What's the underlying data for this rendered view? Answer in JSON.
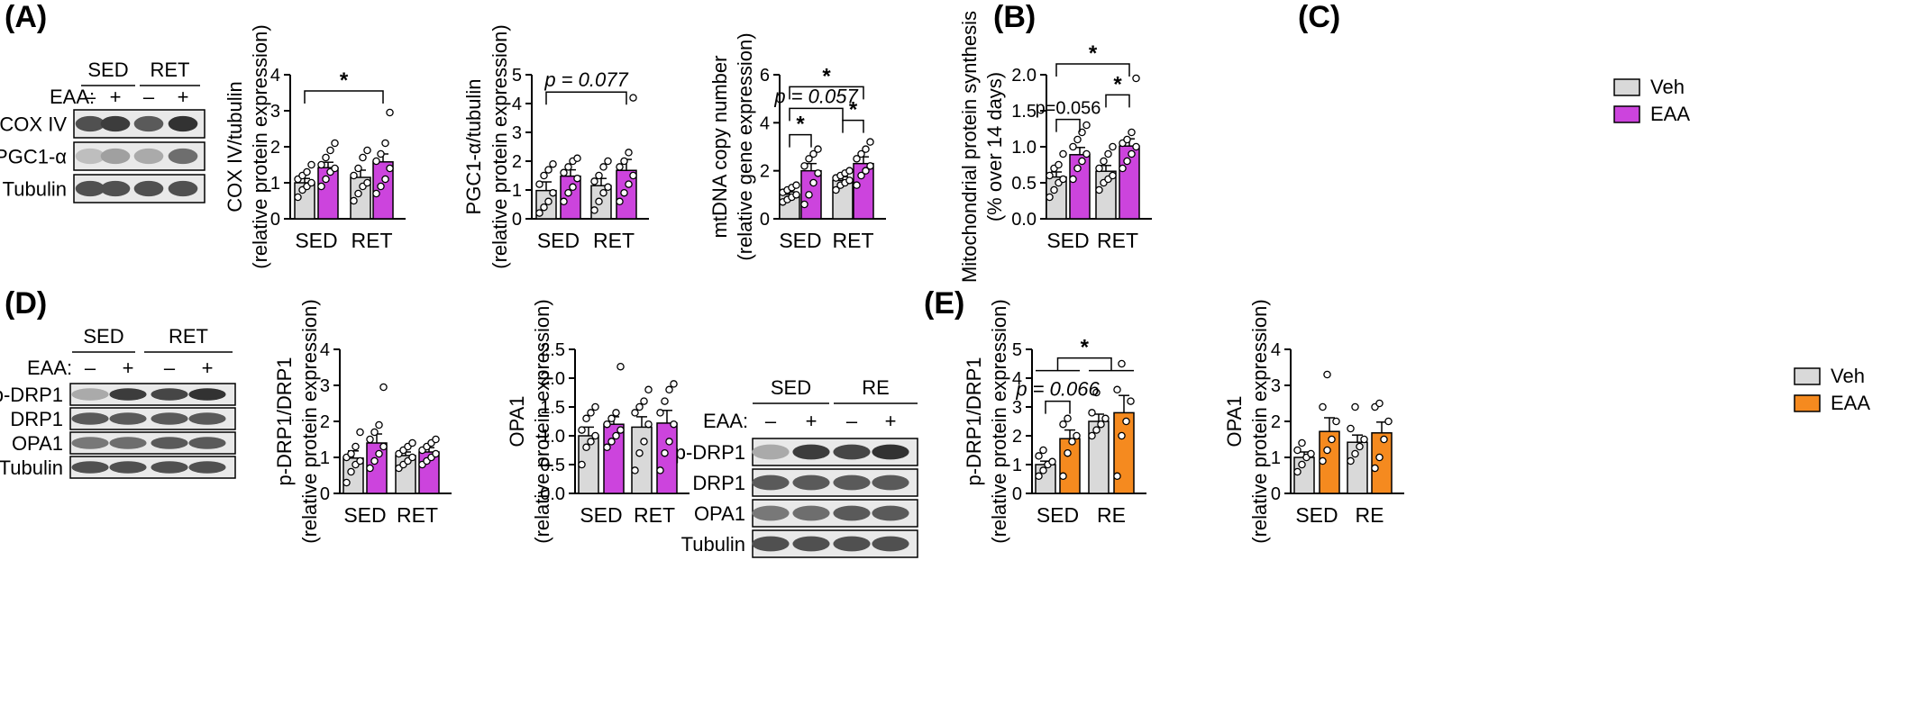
{
  "panels": {
    "A": "(A)",
    "B": "(B)",
    "C": "(C)",
    "D": "(D)",
    "E": "(E)"
  },
  "legend_top": [
    {
      "name": "Veh",
      "color": "#d9d9d9"
    },
    {
      "name": "EAA",
      "color": "#cc44dd"
    }
  ],
  "legend_bottom": [
    {
      "name": "Veh",
      "color": "#d9d9d9"
    },
    {
      "name": "EAA",
      "color": "#f58a1f"
    }
  ],
  "blots": [
    {
      "id": "blotA",
      "groups": [
        "SED",
        "RET"
      ],
      "row_label": "EAA:",
      "signs": [
        "–",
        "+",
        "–",
        "+"
      ],
      "bands": [
        "COX IV",
        "PGC1-α",
        "Tubulin"
      ]
    },
    {
      "id": "blotD",
      "groups": [
        "SED",
        "RET"
      ],
      "row_label": "EAA:",
      "signs": [
        "–",
        "+",
        "–",
        "+"
      ],
      "bands": [
        "p-DRP1",
        "DRP1",
        "OPA1",
        "Tubulin"
      ]
    },
    {
      "id": "blotE",
      "groups": [
        "SED",
        "RE"
      ],
      "row_label": "EAA:",
      "signs": [
        "–",
        "+",
        "–",
        "+"
      ],
      "bands": [
        "p-DRP1",
        "DRP1",
        "OPA1",
        "Tubulin"
      ]
    }
  ],
  "chart_data": [
    {
      "id": "cox4",
      "type": "bar",
      "ylabel": [
        "COX IV/tubulin",
        "(relative protein expression)"
      ],
      "categories": [
        "SED",
        "RET"
      ],
      "ylim": [
        0,
        4
      ],
      "yticks": [
        0,
        1,
        2,
        3,
        4
      ],
      "series": [
        {
          "name": "Veh",
          "values": [
            1.0,
            1.15
          ],
          "sem": [
            0.12,
            0.2
          ]
        },
        {
          "name": "EAA",
          "values": [
            1.42,
            1.58
          ],
          "sem": [
            0.15,
            0.22
          ]
        }
      ],
      "points": [
        [
          0.6,
          0.8,
          0.9,
          1.0,
          1.1,
          1.2,
          1.3,
          1.5
        ],
        [
          0.9,
          1.1,
          1.3,
          1.4,
          1.5,
          1.7,
          1.9,
          2.1
        ],
        [
          0.5,
          0.7,
          0.9,
          1.0,
          1.2,
          1.4,
          1.7,
          1.9
        ],
        [
          0.7,
          0.9,
          1.1,
          1.4,
          1.6,
          1.8,
          2.1,
          2.95
        ]
      ],
      "annotations": [
        {
          "text": "*",
          "from": [
            0,
            0
          ],
          "to": [
            1,
            1
          ],
          "y": 3.55
        }
      ]
    },
    {
      "id": "pgc1",
      "type": "bar",
      "ylabel": [
        "PGC1-α/tubulin",
        "(relative protein expression)"
      ],
      "categories": [
        "SED",
        "RET"
      ],
      "ylim": [
        0,
        5
      ],
      "yticks": [
        0,
        1,
        2,
        3,
        4,
        5
      ],
      "series": [
        {
          "name": "Veh",
          "values": [
            0.98,
            1.15
          ],
          "sem": [
            0.3,
            0.25
          ]
        },
        {
          "name": "EAA",
          "values": [
            1.48,
            1.68
          ],
          "sem": [
            0.22,
            0.38
          ]
        }
      ],
      "points": [
        [
          0.2,
          0.4,
          0.6,
          0.9,
          1.2,
          1.5,
          1.7,
          1.9
        ],
        [
          0.6,
          0.9,
          1.1,
          1.4,
          1.6,
          1.8,
          2.0,
          2.1
        ],
        [
          0.3,
          0.6,
          0.9,
          1.1,
          1.3,
          1.5,
          1.8,
          2.0
        ],
        [
          0.6,
          0.9,
          1.2,
          1.5,
          1.8,
          2.0,
          2.3,
          4.2
        ]
      ],
      "annotations": [
        {
          "text": "p = 0.077",
          "from": [
            0,
            0
          ],
          "to": [
            1,
            1
          ],
          "y": 4.4,
          "italic": true
        }
      ]
    },
    {
      "id": "mtdna",
      "type": "bar",
      "ylabel": [
        "mtDNA copy number",
        "(relative gene expression)"
      ],
      "categories": [
        "SED",
        "RET"
      ],
      "ylim": [
        0,
        6
      ],
      "yticks": [
        0,
        2,
        4,
        6
      ],
      "series": [
        {
          "name": "Veh",
          "values": [
            1.02,
            1.6
          ],
          "sem": [
            0.1,
            0.15
          ]
        },
        {
          "name": "EAA",
          "values": [
            2.0,
            2.3
          ],
          "sem": [
            0.3,
            0.28
          ]
        }
      ],
      "points": [
        [
          0.7,
          0.8,
          0.9,
          1.0,
          1.1,
          1.2,
          1.3,
          1.4
        ],
        [
          0.6,
          1.0,
          1.5,
          1.9,
          2.2,
          2.5,
          2.7,
          2.9
        ],
        [
          1.2,
          1.4,
          1.5,
          1.6,
          1.7,
          1.8,
          1.9,
          2.0
        ],
        [
          1.4,
          1.8,
          2.0,
          2.2,
          2.5,
          2.7,
          2.9,
          3.2
        ]
      ],
      "annotations": [
        {
          "text": "*",
          "from": [
            0,
            0
          ],
          "to": [
            0,
            1
          ],
          "y": 3.5
        },
        {
          "text": "*",
          "from": [
            1,
            0
          ],
          "to": [
            1,
            1
          ],
          "y": 4.1
        },
        {
          "text": "p = 0.057",
          "from": [
            0,
            0
          ],
          "to": [
            1,
            0
          ],
          "y": 4.6,
          "italic": true
        },
        {
          "text": "*",
          "from": [
            0,
            0
          ],
          "to": [
            1,
            1
          ],
          "y": 5.5
        }
      ]
    },
    {
      "id": "mps",
      "type": "bar",
      "ylabel": [
        "Mitochondrial protein synthesis",
        "(% over 14 days)"
      ],
      "categories": [
        "SED",
        "RET"
      ],
      "ylim": [
        0,
        2.0
      ],
      "yticks": [
        0.0,
        0.5,
        1.0,
        1.5,
        2.0
      ],
      "series": [
        {
          "name": "Veh",
          "values": [
            0.58,
            0.66
          ],
          "sem": [
            0.07,
            0.08
          ]
        },
        {
          "name": "EAA",
          "values": [
            0.89,
            1.01
          ],
          "sem": [
            0.1,
            0.1
          ]
        }
      ],
      "points": [
        [
          0.3,
          0.4,
          0.5,
          0.55,
          0.6,
          0.7,
          0.75,
          0.9
        ],
        [
          0.55,
          0.7,
          0.8,
          0.9,
          1.0,
          1.1,
          1.2,
          1.3
        ],
        [
          0.4,
          0.5,
          0.55,
          0.6,
          0.7,
          0.8,
          0.9,
          1.0
        ],
        [
          0.7,
          0.8,
          0.9,
          1.0,
          1.05,
          1.1,
          1.2,
          1.95
        ]
      ],
      "annotations": [
        {
          "text": "p=0.056",
          "from": [
            0,
            0
          ],
          "to": [
            0,
            1
          ],
          "y": 1.38,
          "small": true
        },
        {
          "text": "*",
          "from": [
            1,
            0
          ],
          "to": [
            1,
            1
          ],
          "y": 1.72
        },
        {
          "text": "*",
          "from": [
            0,
            0
          ],
          "to": [
            1,
            1
          ],
          "y": 2.15
        }
      ]
    },
    {
      "id": "pdrp1d",
      "type": "bar",
      "ylabel": [
        "p-DRP1/DRP1",
        "(relative protein expression)"
      ],
      "categories": [
        "SED",
        "RET"
      ],
      "ylim": [
        0,
        4
      ],
      "yticks": [
        0,
        1,
        2,
        3,
        4
      ],
      "series": [
        {
          "name": "Veh",
          "values": [
            0.98,
            1.05
          ],
          "sem": [
            0.2,
            0.1
          ]
        },
        {
          "name": "EAA",
          "values": [
            1.4,
            1.15
          ],
          "sem": [
            0.25,
            0.12
          ]
        }
      ],
      "points": [
        [
          0.3,
          0.6,
          0.8,
          0.9,
          1.0,
          1.1,
          1.3,
          1.7
        ],
        [
          0.7,
          0.9,
          1.1,
          1.3,
          1.5,
          1.7,
          1.9,
          2.95
        ],
        [
          0.7,
          0.8,
          0.9,
          1.0,
          1.1,
          1.2,
          1.3,
          1.4
        ],
        [
          0.8,
          0.9,
          1.0,
          1.1,
          1.2,
          1.3,
          1.4,
          1.5
        ]
      ],
      "annotations": []
    },
    {
      "id": "opa1d",
      "type": "bar",
      "ylabel": [
        "OPA1",
        "(relative protein expression)"
      ],
      "categories": [
        "SED",
        "RET"
      ],
      "ylim": [
        0,
        2.5
      ],
      "yticks": [
        0.0,
        0.5,
        1.0,
        1.5,
        2.0,
        2.5
      ],
      "series": [
        {
          "name": "Veh",
          "values": [
            1.0,
            1.15
          ],
          "sem": [
            0.15,
            0.18
          ]
        },
        {
          "name": "EAA",
          "values": [
            1.2,
            1.22
          ],
          "sem": [
            0.13,
            0.22
          ]
        }
      ],
      "points": [
        [
          0.5,
          0.8,
          0.9,
          1.0,
          1.1,
          1.3,
          1.4,
          1.5
        ],
        [
          0.8,
          0.9,
          1.0,
          1.1,
          1.2,
          1.3,
          1.4,
          2.2
        ],
        [
          0.4,
          0.7,
          0.9,
          1.2,
          1.4,
          1.5,
          1.6,
          1.8
        ],
        [
          0.4,
          0.7,
          0.9,
          1.2,
          1.4,
          1.6,
          1.8,
          1.9
        ]
      ],
      "annotations": []
    },
    {
      "id": "pdrp1e",
      "type": "bar",
      "ylabel": [
        "p-DRP1/DRP1",
        "(relative protein expression)"
      ],
      "categories": [
        "SED",
        "RE"
      ],
      "ylim": [
        0,
        5
      ],
      "yticks": [
        0,
        1,
        2,
        3,
        4,
        5
      ],
      "series": [
        {
          "name": "Veh",
          "values": [
            1.0,
            2.5
          ],
          "sem": [
            0.12,
            0.25
          ]
        },
        {
          "name": "EAA",
          "values": [
            1.9,
            2.8
          ],
          "sem": [
            0.3,
            0.6
          ]
        }
      ],
      "points": [
        [
          0.6,
          0.8,
          1.0,
          1.1,
          1.3,
          1.5
        ],
        [
          0.6,
          1.4,
          1.8,
          2.0,
          2.4,
          2.6
        ],
        [
          2.0,
          2.2,
          2.4,
          2.6,
          2.8,
          3.5
        ],
        [
          0.6,
          2.0,
          2.5,
          3.2,
          3.6,
          4.5
        ]
      ],
      "annotations": [
        {
          "text": "p = 0.066",
          "from": [
            0,
            0
          ],
          "to": [
            0,
            1
          ],
          "y": 3.2,
          "italic": true
        },
        {
          "text": "*",
          "from": [
            0,
            0
          ],
          "to": [
            1,
            1
          ],
          "y": 4.7,
          "bracket_group": true
        }
      ]
    },
    {
      "id": "opa1e",
      "type": "bar",
      "ylabel": [
        "OPA1",
        "(relative protein expression)"
      ],
      "categories": [
        "SED",
        "RE"
      ],
      "ylim": [
        0,
        4
      ],
      "yticks": [
        0,
        1,
        2,
        3,
        4
      ],
      "series": [
        {
          "name": "Veh",
          "values": [
            1.0,
            1.42
          ],
          "sem": [
            0.15,
            0.2
          ]
        },
        {
          "name": "EAA",
          "values": [
            1.72,
            1.68
          ],
          "sem": [
            0.38,
            0.3
          ]
        }
      ],
      "points": [
        [
          0.6,
          0.8,
          1.0,
          1.1,
          1.2,
          1.4
        ],
        [
          0.9,
          1.2,
          1.5,
          2.0,
          2.4,
          3.3
        ],
        [
          0.9,
          1.1,
          1.3,
          1.5,
          1.8,
          2.4
        ],
        [
          0.7,
          1.0,
          1.5,
          2.0,
          2.4,
          2.5
        ]
      ],
      "annotations": []
    }
  ]
}
